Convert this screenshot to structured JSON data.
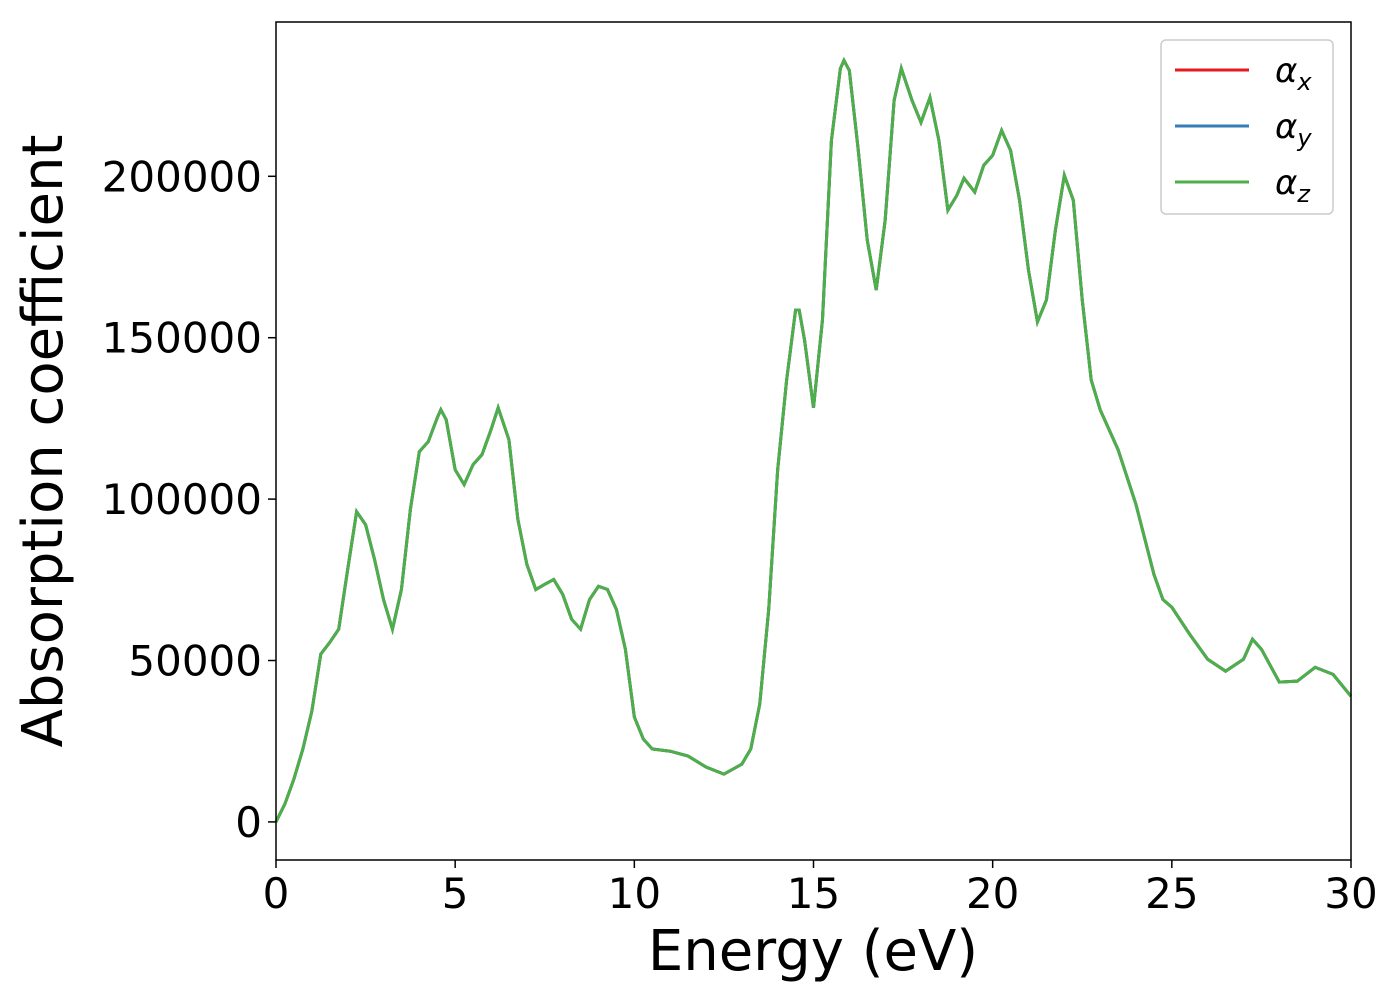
{
  "chart_data": {
    "type": "line",
    "xlabel": "Energy (eV)",
    "ylabel": "Absorption coefficient",
    "x": [
      0,
      0.25,
      0.5,
      0.75,
      1,
      1.25,
      1.5,
      1.75,
      2,
      2.25,
      2.5,
      2.75,
      3,
      3.25,
      3.5,
      3.75,
      4,
      4.25,
      4.5,
      4.6,
      4.75,
      5,
      5.25,
      5.5,
      5.75,
      6,
      6.2,
      6.5,
      6.75,
      7,
      7.25,
      7.5,
      7.75,
      8,
      8.25,
      8.5,
      8.75,
      9,
      9.25,
      9.5,
      9.75,
      10,
      10.25,
      10.5,
      11,
      11.5,
      12,
      12.5,
      13,
      13.25,
      13.5,
      13.75,
      14,
      14.25,
      14.5,
      14.6,
      14.75,
      15,
      15.25,
      15.5,
      15.75,
      15.85,
      16,
      16.25,
      16.5,
      16.75,
      17,
      17.25,
      17.45,
      17.75,
      18,
      18.25,
      18.5,
      18.75,
      19,
      19.2,
      19.5,
      19.75,
      20,
      20.25,
      20.5,
      20.75,
      21,
      21.25,
      21.5,
      21.75,
      22,
      22.25,
      22.5,
      22.75,
      23,
      23.5,
      24,
      24.5,
      24.75,
      25,
      25.5,
      26,
      26.5,
      27,
      27.25,
      27.5,
      28,
      28.5,
      29,
      29.5,
      30
    ],
    "series": [
      {
        "name": "αx",
        "color": "#e41a1c",
        "values": [
          0,
          5600,
          13300,
          22600,
          34300,
          52000,
          55600,
          59700,
          78200,
          96100,
          92100,
          81300,
          68900,
          59700,
          72000,
          96800,
          114700,
          117800,
          125200,
          127700,
          124600,
          109100,
          104500,
          110700,
          113800,
          121500,
          128300,
          118400,
          93700,
          79800,
          72000,
          73600,
          75100,
          70500,
          62800,
          59700,
          68900,
          73000,
          72000,
          65800,
          53500,
          32500,
          25700,
          22600,
          21900,
          20400,
          17000,
          14800,
          17900,
          22600,
          36500,
          65800,
          109100,
          136900,
          158600,
          158600,
          149300,
          128300,
          155500,
          211100,
          233400,
          235900,
          232800,
          208000,
          180200,
          164800,
          186400,
          223500,
          233400,
          223500,
          216700,
          224400,
          211100,
          189500,
          194100,
          199400,
          195100,
          203400,
          206500,
          214200,
          208000,
          192600,
          170900,
          154900,
          161700,
          183300,
          200300,
          192600,
          161700,
          136900,
          127700,
          115300,
          98300,
          76700,
          68900,
          66500,
          58100,
          50400,
          46700,
          50400,
          56600,
          53500,
          43300,
          43600,
          47900,
          45700,
          38900
        ]
      },
      {
        "name": "αy",
        "color": "#377eb8",
        "values": [
          0,
          5600,
          13300,
          22600,
          34300,
          52000,
          55600,
          59700,
          78200,
          96100,
          92100,
          81300,
          68900,
          59700,
          72000,
          96800,
          114700,
          117800,
          125200,
          127700,
          124600,
          109100,
          104500,
          110700,
          113800,
          121500,
          128300,
          118400,
          93700,
          79800,
          72000,
          73600,
          75100,
          70500,
          62800,
          59700,
          68900,
          73000,
          72000,
          65800,
          53500,
          32500,
          25700,
          22600,
          21900,
          20400,
          17000,
          14800,
          17900,
          22600,
          36500,
          65800,
          109100,
          136900,
          158600,
          158600,
          149300,
          128300,
          155500,
          211100,
          233400,
          235900,
          232800,
          208000,
          180200,
          164800,
          186400,
          223500,
          233400,
          223500,
          216700,
          224400,
          211100,
          189500,
          194100,
          199400,
          195100,
          203400,
          206500,
          214200,
          208000,
          192600,
          170900,
          154900,
          161700,
          183300,
          200300,
          192600,
          161700,
          136900,
          127700,
          115300,
          98300,
          76700,
          68900,
          66500,
          58100,
          50400,
          46700,
          50400,
          56600,
          53500,
          43300,
          43600,
          47900,
          45700,
          38900
        ]
      },
      {
        "name": "αz",
        "color": "#4daf4a",
        "values": [
          0,
          5600,
          13300,
          22600,
          34300,
          52000,
          55600,
          59700,
          78200,
          96100,
          92100,
          81300,
          68900,
          59700,
          72000,
          96800,
          114700,
          117800,
          125200,
          127700,
          124600,
          109100,
          104500,
          110700,
          113800,
          121500,
          128300,
          118400,
          93700,
          79800,
          72000,
          73600,
          75100,
          70500,
          62800,
          59700,
          68900,
          73000,
          72000,
          65800,
          53500,
          32500,
          25700,
          22600,
          21900,
          20400,
          17000,
          14800,
          17900,
          22600,
          36500,
          65800,
          109100,
          136900,
          158600,
          158600,
          149300,
          128300,
          155500,
          211100,
          233400,
          235900,
          232800,
          208000,
          180200,
          164800,
          186400,
          223500,
          233400,
          223500,
          216700,
          224400,
          211100,
          189500,
          194100,
          199400,
          195100,
          203400,
          206500,
          214200,
          208000,
          192600,
          170900,
          154900,
          161700,
          183300,
          200300,
          192600,
          161700,
          136900,
          127700,
          115300,
          98300,
          76700,
          68900,
          66500,
          58100,
          50400,
          46700,
          50400,
          56600,
          53500,
          43300,
          43600,
          47900,
          45700,
          38900
        ]
      }
    ],
    "xlim": [
      0,
      30
    ],
    "xticks": [
      0,
      5,
      10,
      15,
      20,
      25,
      30
    ],
    "ylim": [
      -11800,
      247800
    ],
    "yticks": [
      0,
      50000,
      100000,
      150000,
      200000
    ],
    "grid": false,
    "legend": "upper right"
  }
}
